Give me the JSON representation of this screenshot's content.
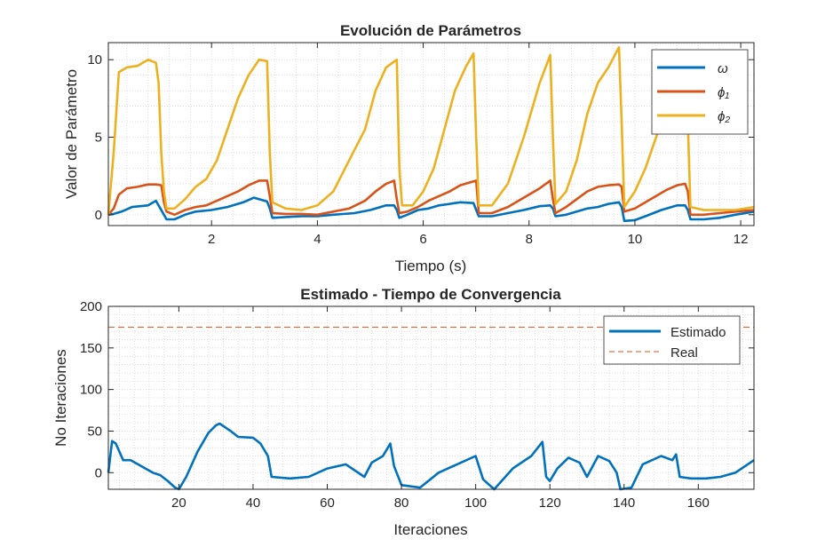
{
  "chart_data": [
    {
      "type": "line",
      "title": "Evolución de Parámetros",
      "xlabel": "Tiempo (s)",
      "ylabel": "Valor de Parámetro",
      "xlim": [
        0.05,
        12.25
      ],
      "ylim": [
        -0.7,
        11.1
      ],
      "xticks": [
        2,
        4,
        6,
        8,
        10,
        12
      ],
      "yticks": [
        0,
        5,
        10
      ],
      "grid": "minor-dotted",
      "legend_position": "top-right",
      "series": [
        {
          "name": "ω",
          "color": "#0072BD",
          "x": [
            0.05,
            0.15,
            0.3,
            0.5,
            0.8,
            0.95,
            1.0,
            1.1,
            1.15,
            1.3,
            1.5,
            1.7,
            2.0,
            2.3,
            2.6,
            2.8,
            3.05,
            3.1,
            3.15,
            3.4,
            3.7,
            4.0,
            4.3,
            4.7,
            5.0,
            5.3,
            5.45,
            5.5,
            5.55,
            5.7,
            5.9,
            6.1,
            6.3,
            6.5,
            6.7,
            6.95,
            7.0,
            7.05,
            7.3,
            7.6,
            7.9,
            8.2,
            8.4,
            8.45,
            8.5,
            8.7,
            8.9,
            9.1,
            9.3,
            9.5,
            9.7,
            9.75,
            9.8,
            10.0,
            10.2,
            10.5,
            10.8,
            10.95,
            11.0,
            11.05,
            11.3,
            11.6,
            11.9,
            12.25
          ],
          "y": [
            0.0,
            0.05,
            0.2,
            0.5,
            0.6,
            0.9,
            0.6,
            0.0,
            -0.3,
            -0.3,
            0.0,
            0.2,
            0.3,
            0.5,
            0.8,
            1.1,
            0.85,
            0.4,
            -0.2,
            -0.15,
            -0.1,
            -0.1,
            0.0,
            0.1,
            0.3,
            0.6,
            0.6,
            0.3,
            -0.2,
            0.0,
            0.3,
            0.4,
            0.6,
            0.7,
            0.8,
            0.75,
            0.3,
            -0.1,
            -0.1,
            0.1,
            0.3,
            0.55,
            0.6,
            0.4,
            -0.1,
            0.0,
            0.2,
            0.4,
            0.5,
            0.7,
            0.8,
            0.5,
            -0.4,
            -0.35,
            -0.1,
            0.3,
            0.6,
            0.6,
            0.3,
            -0.3,
            -0.3,
            -0.2,
            0.0,
            0.2
          ]
        },
        {
          "name": "ϕ₁",
          "color": "#D95319",
          "x": [
            0.05,
            0.15,
            0.25,
            0.4,
            0.6,
            0.8,
            0.95,
            1.05,
            1.1,
            1.15,
            1.3,
            1.5,
            1.7,
            1.9,
            2.1,
            2.3,
            2.5,
            2.7,
            2.9,
            3.05,
            3.1,
            3.15,
            3.4,
            3.7,
            4.0,
            4.3,
            4.6,
            4.9,
            5.1,
            5.3,
            5.45,
            5.5,
            5.55,
            5.7,
            5.9,
            6.1,
            6.3,
            6.5,
            6.7,
            6.9,
            7.0,
            7.05,
            7.3,
            7.6,
            7.9,
            8.2,
            8.4,
            8.45,
            8.5,
            8.7,
            8.9,
            9.1,
            9.3,
            9.5,
            9.7,
            9.75,
            9.8,
            10.0,
            10.2,
            10.4,
            10.6,
            10.8,
            10.95,
            11.0,
            11.05,
            11.3,
            11.6,
            11.9,
            12.25
          ],
          "y": [
            0.0,
            0.4,
            1.3,
            1.7,
            1.8,
            1.95,
            1.95,
            1.9,
            0.8,
            0.2,
            0.0,
            0.3,
            0.5,
            0.6,
            0.9,
            1.2,
            1.5,
            1.9,
            2.2,
            2.2,
            1.2,
            0.1,
            0.05,
            0.05,
            0.0,
            0.2,
            0.4,
            0.9,
            1.5,
            2.0,
            2.2,
            1.0,
            0.1,
            0.2,
            0.5,
            0.9,
            1.2,
            1.5,
            1.9,
            2.1,
            2.2,
            0.1,
            0.1,
            0.5,
            1.1,
            1.7,
            2.2,
            1.0,
            0.1,
            0.5,
            1.0,
            1.5,
            1.8,
            1.9,
            1.95,
            1.8,
            0.2,
            0.4,
            0.8,
            1.2,
            1.6,
            1.9,
            2.0,
            1.5,
            0.0,
            0.0,
            0.1,
            0.2,
            0.3
          ]
        },
        {
          "name": "ϕ₂",
          "color": "#EDB120",
          "x": [
            0.05,
            0.15,
            0.25,
            0.4,
            0.6,
            0.8,
            0.95,
            1.0,
            1.05,
            1.1,
            1.15,
            1.3,
            1.5,
            1.7,
            1.9,
            2.1,
            2.3,
            2.5,
            2.7,
            2.9,
            3.05,
            3.1,
            3.15,
            3.4,
            3.7,
            4.0,
            4.3,
            4.6,
            4.9,
            5.1,
            5.3,
            5.5,
            5.55,
            5.6,
            5.8,
            6.0,
            6.2,
            6.4,
            6.6,
            6.8,
            6.95,
            7.0,
            7.05,
            7.3,
            7.6,
            7.9,
            8.2,
            8.4,
            8.45,
            8.5,
            8.7,
            8.9,
            9.1,
            9.3,
            9.5,
            9.7,
            9.75,
            9.8,
            10.0,
            10.2,
            10.4,
            10.6,
            10.8,
            10.95,
            11.0,
            11.05,
            11.3,
            11.6,
            11.9,
            12.25
          ],
          "y": [
            0.0,
            4.0,
            9.2,
            9.5,
            9.6,
            10.0,
            9.8,
            8.5,
            4.0,
            1.5,
            0.4,
            0.4,
            1.0,
            1.8,
            2.3,
            3.5,
            5.5,
            7.5,
            9.0,
            10.0,
            9.9,
            4.0,
            0.8,
            0.4,
            0.3,
            0.6,
            1.5,
            3.5,
            5.5,
            8.0,
            9.5,
            10.0,
            3.0,
            0.6,
            0.6,
            1.5,
            3.0,
            5.5,
            8.0,
            9.5,
            10.4,
            5.0,
            0.6,
            0.6,
            2.0,
            5.0,
            8.5,
            10.3,
            5.0,
            0.7,
            1.5,
            3.5,
            6.5,
            8.5,
            9.5,
            10.8,
            6.0,
            0.5,
            1.5,
            3.0,
            5.0,
            7.0,
            9.5,
            10.0,
            6.0,
            0.5,
            0.3,
            0.3,
            0.3,
            0.5
          ]
        }
      ]
    },
    {
      "type": "line",
      "title": "Estimado - Tiempo de Convergencia",
      "xlabel": "Iteraciones",
      "ylabel": "No Iteraciones",
      "xlim": [
        1,
        175
      ],
      "ylim": [
        -20,
        200
      ],
      "xticks": [
        20,
        40,
        60,
        80,
        100,
        120,
        140,
        160
      ],
      "yticks": [
        0,
        50,
        100,
        150,
        200
      ],
      "grid": "minor-dotted",
      "legend_position": "top-right",
      "series": [
        {
          "name": "Estimado",
          "color": "#0072BD",
          "style": "solid",
          "x": [
            1,
            2,
            3,
            5,
            7,
            9,
            11,
            13,
            15,
            17,
            19,
            20,
            22,
            25,
            28,
            30,
            31,
            34,
            36,
            40,
            42,
            44,
            45,
            50,
            55,
            60,
            65,
            70,
            72,
            75,
            77,
            78,
            80,
            85,
            90,
            95,
            100,
            102,
            105,
            110,
            115,
            118,
            119,
            120,
            122,
            125,
            128,
            130,
            133,
            136,
            138,
            139,
            142,
            145,
            150,
            153,
            154,
            155,
            158,
            162,
            166,
            170,
            175
          ],
          "y": [
            0,
            38,
            35,
            15,
            15,
            10,
            5,
            0,
            -3,
            -10,
            -18,
            -20,
            -5,
            25,
            48,
            57,
            59,
            50,
            43,
            42,
            35,
            20,
            -5,
            -7,
            -5,
            5,
            10,
            -5,
            12,
            20,
            35,
            8,
            -15,
            -18,
            0,
            10,
            20,
            -8,
            -20,
            5,
            20,
            37,
            -5,
            -10,
            5,
            18,
            12,
            -5,
            20,
            14,
            0,
            -20,
            -18,
            10,
            20,
            15,
            22,
            -5,
            -7,
            -7,
            -5,
            0,
            15
          ]
        },
        {
          "name": "Real",
          "color": "#D95319",
          "style": "dashed",
          "x": [
            1,
            175
          ],
          "y": [
            175,
            175
          ]
        }
      ]
    }
  ]
}
